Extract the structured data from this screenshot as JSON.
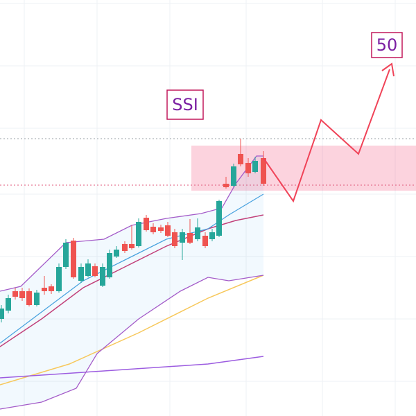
{
  "annotations": [
    "SSI",
    "50"
  ]
}
